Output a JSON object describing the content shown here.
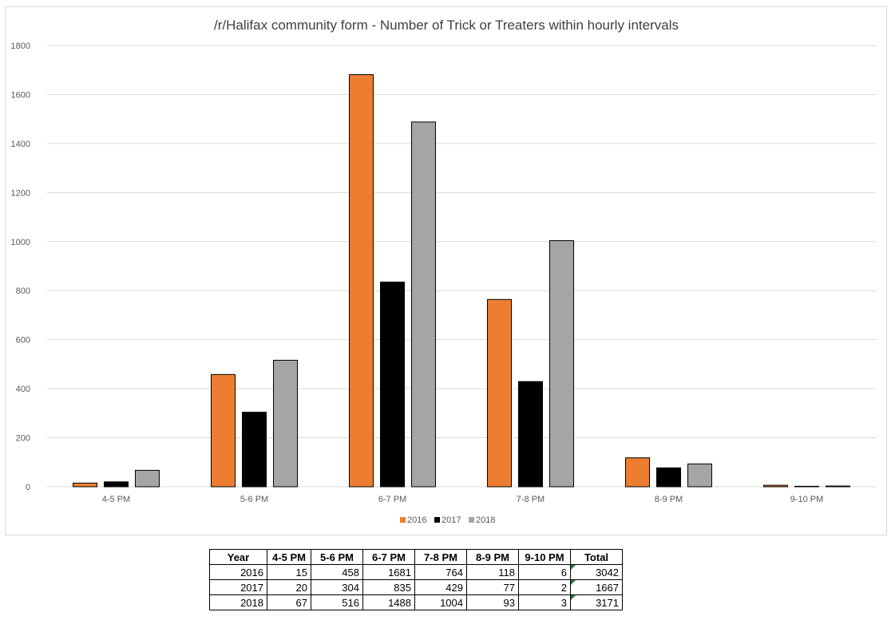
{
  "chart_data": {
    "type": "bar",
    "title": "/r/Halifax community form - Number of Trick or Treaters within hourly intervals",
    "categories": [
      "4-5 PM",
      "5-6 PM",
      "6-7 PM",
      "7-8 PM",
      "8-9 PM",
      "9-10 PM"
    ],
    "series": [
      {
        "name": "2016",
        "color": "#ed7d31",
        "values": [
          15,
          458,
          1681,
          764,
          118,
          6
        ]
      },
      {
        "name": "2017",
        "color": "#000000",
        "values": [
          20,
          304,
          835,
          429,
          77,
          2
        ]
      },
      {
        "name": "2018",
        "color": "#a5a5a5",
        "values": [
          67,
          516,
          1488,
          1004,
          93,
          3
        ]
      }
    ],
    "yticks": [
      "0",
      "200",
      "400",
      "600",
      "800",
      "1000",
      "1200",
      "1400",
      "1600",
      "1800"
    ],
    "ylim": [
      0,
      1800
    ],
    "xlabel": "",
    "ylabel": "",
    "grid": true,
    "legend_position": "bottom"
  },
  "table": {
    "headers": [
      "Year",
      "4-5 PM",
      "5-6 PM",
      "6-7 PM",
      "7-8 PM",
      "8-9 PM",
      "9-10 PM",
      "Total"
    ],
    "rows": [
      [
        "2016",
        "15",
        "458",
        "1681",
        "764",
        "118",
        "6",
        "3042"
      ],
      [
        "2017",
        "20",
        "304",
        "835",
        "429",
        "77",
        "2",
        "1667"
      ],
      [
        "2018",
        "67",
        "516",
        "1488",
        "1004",
        "93",
        "3",
        "3171"
      ]
    ]
  }
}
